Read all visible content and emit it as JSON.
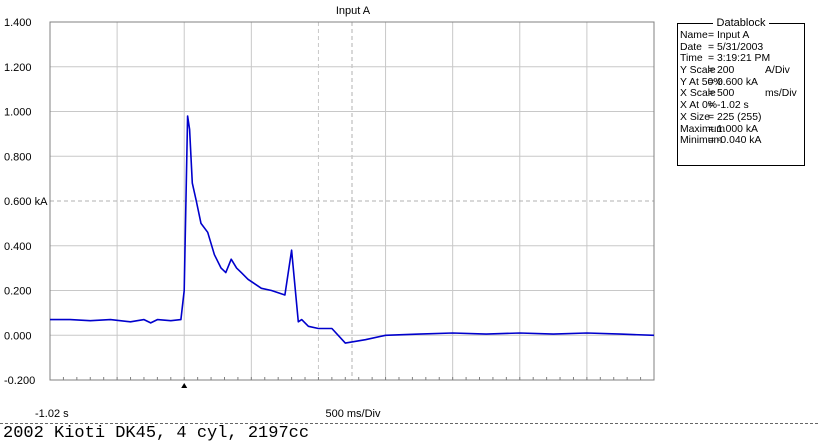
{
  "chart_data": {
    "type": "line",
    "title": "Input A",
    "y_ticks": [
      "1.400",
      "1.200",
      "1.000",
      "0.800",
      "0.600 kA",
      "0.400",
      "0.200",
      "0.000",
      "-0.200"
    ],
    "ylim": [
      -0.2,
      1.4
    ],
    "xlim": [
      0,
      9
    ],
    "x_left_label": "-1.02 s",
    "x_center_label": "500 ms/Div",
    "trigger_marker_x": 2,
    "grid": true,
    "series": [
      {
        "color": "#0000cc",
        "x": [
          0,
          0.3,
          0.6,
          0.9,
          1.2,
          1.4,
          1.5,
          1.6,
          1.8,
          1.95,
          2.0,
          2.05,
          2.08,
          2.12,
          2.18,
          2.25,
          2.35,
          2.45,
          2.55,
          2.62,
          2.7,
          2.78,
          2.85,
          2.95,
          3.05,
          3.15,
          3.3,
          3.5,
          3.6,
          3.7,
          3.75,
          3.85,
          4.0,
          4.2,
          4.4,
          4.7,
          5.0,
          5.5,
          6.0,
          6.5,
          7.0,
          7.5,
          8.0,
          8.5,
          9.0
        ],
        "y": [
          0.07,
          0.07,
          0.065,
          0.07,
          0.06,
          0.07,
          0.055,
          0.07,
          0.065,
          0.07,
          0.2,
          0.98,
          0.92,
          0.68,
          0.6,
          0.5,
          0.46,
          0.36,
          0.3,
          0.28,
          0.34,
          0.3,
          0.28,
          0.25,
          0.23,
          0.21,
          0.2,
          0.18,
          0.38,
          0.06,
          0.07,
          0.04,
          0.03,
          0.03,
          -0.035,
          -0.02,
          0.0,
          0.005,
          0.01,
          0.005,
          0.01,
          0.005,
          0.01,
          0.005,
          0.0
        ]
      }
    ]
  },
  "datablock": {
    "title": "Datablock",
    "rows": [
      {
        "k": "Name",
        "v": "= Input A",
        "u": ""
      },
      {
        "k": "Date",
        "v": "= 5/31/2003",
        "u": ""
      },
      {
        "k": "Time",
        "v": "= 3:19:21 PM",
        "u": ""
      },
      {
        "k": "Y Scale",
        "v": "= 200",
        "u": "A/Div"
      },
      {
        "k": "Y At 50%",
        "v": "= 0.600 kA",
        "u": ""
      },
      {
        "k": "X Scale",
        "v": "= 500",
        "u": "ms/Div"
      },
      {
        "k": "X At 0%",
        "v": "= -1.02 s",
        "u": ""
      },
      {
        "k": "X Size",
        "v": "= 225 (255)",
        "u": ""
      },
      {
        "k": "Maximum",
        "v": "= 1.000 kA",
        "u": ""
      },
      {
        "k": "Minimum",
        "v": "= -0.040 kA",
        "u": ""
      }
    ]
  },
  "caption": "2002 Kioti DK45, 4 cyl, 2197cc"
}
